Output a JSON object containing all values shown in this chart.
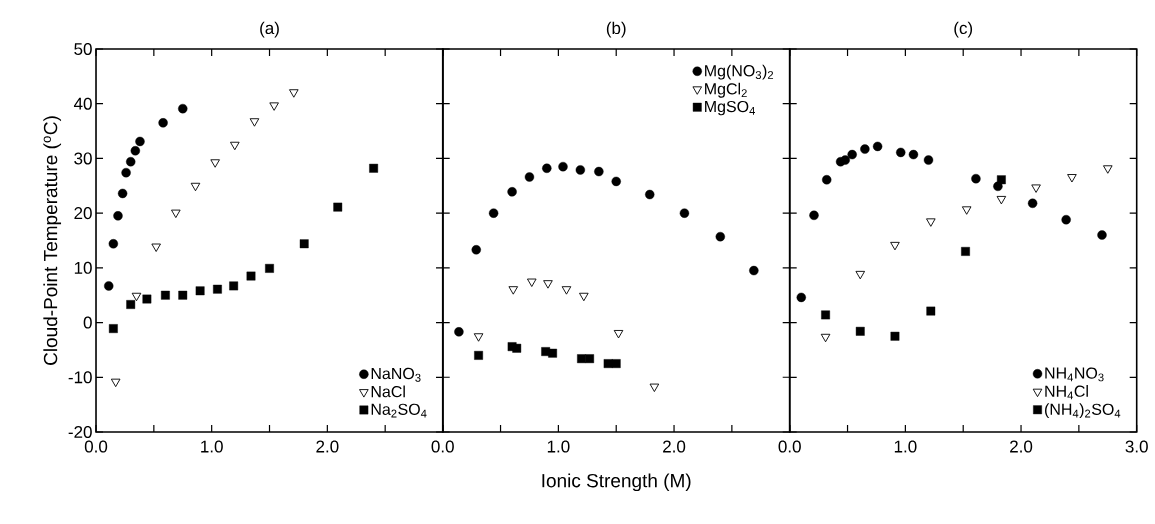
{
  "chart_data": [
    {
      "type": "scatter",
      "title": "(a)",
      "ylabel": "Cloud-Point Temperature ($^{o}$C)",
      "xlim": [
        0,
        3
      ],
      "ylim": [
        -20,
        50
      ],
      "xticks": [
        {
          "value": 0,
          "label": "0.0"
        },
        {
          "value": 0.5,
          "label": null
        },
        {
          "value": 1,
          "label": "1.0"
        },
        {
          "value": 1.5,
          "label": null
        },
        {
          "value": 2,
          "label": "2.0"
        },
        {
          "value": 2.5,
          "label": null
        },
        {
          "value": 3,
          "label": null
        }
      ],
      "yticks": [
        -20,
        -10,
        0,
        10,
        20,
        30,
        40,
        50
      ],
      "legend": "bottom right",
      "series": [
        {
          "name": "NaNO$_{3}$",
          "color": "#000000",
          "marker": "circle",
          "x": [
            0.11,
            0.15,
            0.19,
            0.23,
            0.26,
            0.3,
            0.34,
            0.38,
            0.58,
            0.75
          ],
          "values": [
            6.7,
            14.4,
            19.5,
            23.6,
            27.4,
            29.4,
            31.4,
            33.1,
            36.5,
            39.1
          ]
        },
        {
          "name": "NaCl",
          "color": "#000000",
          "marker": "triangle",
          "x": [
            0.17,
            0.35,
            0.52,
            0.69,
            0.86,
            1.03,
            1.2,
            1.37,
            1.54,
            1.71
          ],
          "values": [
            -10.8,
            4.9,
            13.9,
            20.1,
            25.0,
            29.3,
            32.5,
            36.8,
            39.7,
            42.1
          ]
        },
        {
          "name": "Na$_{2}$SO$_{4}$",
          "color": "#000000",
          "marker": "square",
          "x": [
            0.15,
            0.3,
            0.44,
            0.6,
            0.75,
            0.9,
            1.05,
            1.19,
            1.34,
            1.5,
            1.8,
            2.09,
            2.4
          ],
          "values": [
            -1.1,
            3.3,
            4.3,
            5.0,
            5.0,
            5.8,
            6.1,
            6.7,
            8.5,
            9.9,
            14.4,
            21.1,
            28.2
          ]
        }
      ]
    },
    {
      "type": "scatter",
      "title": "(b)",
      "xlabel": "Ionic Strength (M)",
      "xlim": [
        0,
        3
      ],
      "ylim": [
        -20,
        50
      ],
      "tick_labels": "x",
      "xticks": [
        {
          "value": 0,
          "label": "0.0"
        },
        {
          "value": 0.5,
          "label": null
        },
        {
          "value": 1,
          "label": "1.0"
        },
        {
          "value": 1.5,
          "label": null
        },
        {
          "value": 2,
          "label": "2.0"
        },
        {
          "value": 2.5,
          "label": null
        },
        {
          "value": 3,
          "label": null
        }
      ],
      "yticks": [
        -20,
        -10,
        0,
        10,
        20,
        30,
        40,
        50
      ],
      "legend": "top right",
      "series": [
        {
          "name": "Mg(NO$_{3}$)$_{2}$",
          "color": "#000000",
          "marker": "circle",
          "x": [
            0.14,
            0.29,
            0.44,
            0.6,
            0.75,
            0.9,
            1.04,
            1.19,
            1.35,
            1.5,
            1.79,
            2.09,
            2.4,
            2.69
          ],
          "values": [
            -1.7,
            13.3,
            20.0,
            23.9,
            26.6,
            28.2,
            28.5,
            27.9,
            27.6,
            25.8,
            23.4,
            20.0,
            15.7,
            9.5
          ]
        },
        {
          "name": "MgCl$_{2}$",
          "color": "#000000",
          "marker": "triangle",
          "x": [
            0.31,
            0.61,
            0.77,
            0.91,
            1.07,
            1.22,
            1.52,
            1.83
          ],
          "values": [
            -2.5,
            6.1,
            7.5,
            7.2,
            6.1,
            4.9,
            -1.9,
            -11.7
          ]
        },
        {
          "name": "MgSO$_{4}$",
          "color": "#000000",
          "marker": "square",
          "x": [
            0.31,
            0.6,
            0.64,
            0.89,
            0.95,
            1.2,
            1.27,
            1.43,
            1.5
          ],
          "values": [
            -6.0,
            -4.4,
            -4.7,
            -5.3,
            -5.6,
            -6.6,
            -6.6,
            -7.5,
            -7.5
          ]
        }
      ]
    },
    {
      "type": "scatter",
      "title": "(c)",
      "xlim": [
        0,
        3
      ],
      "ylim": [
        -20,
        50
      ],
      "tick_labels": "x",
      "xticks": [
        {
          "value": 0,
          "label": "0.0"
        },
        {
          "value": 0.5,
          "label": null
        },
        {
          "value": 1,
          "label": "1.0"
        },
        {
          "value": 1.5,
          "label": null
        },
        {
          "value": 2,
          "label": "2.0"
        },
        {
          "value": 2.5,
          "label": null
        },
        {
          "value": 3,
          "label": "3.0"
        }
      ],
      "yticks": [
        -20,
        -10,
        0,
        10,
        20,
        30,
        40,
        50
      ],
      "legend": "bottom right",
      "series": [
        {
          "name": "NH$_{4}$NO$_{3}$",
          "color": "#000000",
          "marker": "circle",
          "x": [
            0.1,
            0.21,
            0.32,
            0.44,
            0.48,
            0.54,
            0.65,
            0.76,
            0.96,
            1.07,
            1.2,
            1.61,
            1.8,
            2.1,
            2.39,
            2.7
          ],
          "values": [
            4.6,
            19.6,
            26.1,
            29.4,
            29.7,
            30.7,
            31.7,
            32.2,
            31.1,
            30.7,
            29.7,
            26.3,
            24.9,
            21.8,
            18.8,
            16.0
          ]
        },
        {
          "name": "NH$_{4}$Cl",
          "color": "#000000",
          "marker": "triangle",
          "x": [
            0.31,
            0.61,
            0.91,
            1.22,
            1.53,
            1.83,
            2.13,
            2.44,
            2.75
          ],
          "values": [
            -2.6,
            8.9,
            14.2,
            18.5,
            20.7,
            22.6,
            24.7,
            26.6,
            28.2
          ]
        },
        {
          "name": "(NH$_{4}$)$_{2}$SO$_{4}$",
          "color": "#000000",
          "marker": "square",
          "x": [
            0.31,
            0.61,
            0.91,
            1.22,
            1.52,
            1.83
          ],
          "values": [
            1.4,
            -1.6,
            -2.5,
            2.1,
            13.0,
            26.1
          ]
        }
      ]
    }
  ]
}
